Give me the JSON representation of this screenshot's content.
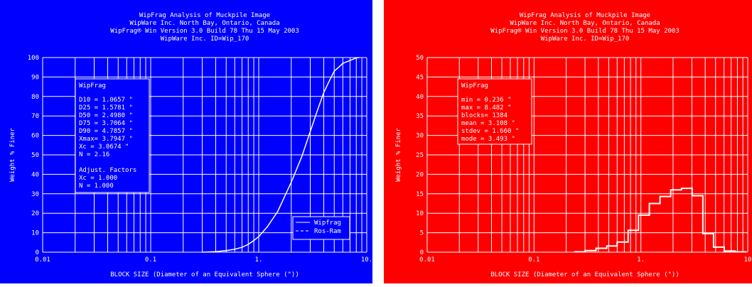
{
  "chart_data": [
    {
      "type": "line",
      "panel_color": "#0000ff",
      "title_lines": [
        "WipFrag Analysis of Muckpile Image",
        "WipWare Inc. North Bay, Ontario, Canada",
        "WipFrag® Win Version 3.0 Build 78 Thu 15 May 2003",
        "WipWare Inc.  ID=Wip_170"
      ],
      "xlabel": "BLOCK SIZE (Diameter of an Equivalent Sphere (\"))",
      "ylabel": "Weight % Finer",
      "xscale": "log",
      "xlim": [
        0.01,
        10
      ],
      "ylim": [
        0,
        100
      ],
      "xticks": [
        "0.01",
        "0.1",
        "1.",
        "10."
      ],
      "yticks": [
        "0",
        "10",
        "20",
        "30",
        "40",
        "50",
        "60",
        "70",
        "80",
        "90",
        "100"
      ],
      "grid": true,
      "stats_box": {
        "heading": "WipFrag",
        "lines": [
          "D10 = 1.0657 \"",
          "D25 = 1.5781 \"",
          "D50 = 2.4980 \"",
          "D75 = 3.7064 \"",
          "D90 = 4.7857 \"",
          "Xmax= 3.7947 \"",
          "Xc  = 3.0674 \"",
          "N   = 2.16"
        ],
        "adjust_heading": "Adjust. Factors",
        "adjust_lines": [
          "Xc  = 1.000",
          "N   = 1.000"
        ]
      },
      "legend": [
        "Wipfrag",
        "Ros-Ram"
      ],
      "legend_position": "bottom-right",
      "series": [
        {
          "name": "Wipfrag",
          "style": "solid",
          "x": [
            0.3,
            0.4,
            0.5,
            0.6,
            0.7,
            0.8,
            0.9,
            1.0,
            1.2,
            1.5,
            2.0,
            2.5,
            3.0,
            3.5,
            4.0,
            4.5,
            5.0,
            5.5,
            6.0,
            7.0,
            8.0,
            8.5
          ],
          "y": [
            0,
            0.3,
            0.8,
            1.5,
            2.5,
            4,
            6,
            8,
            13,
            21,
            36,
            49,
            62,
            73,
            82,
            88,
            93,
            95,
            97,
            98.5,
            99.8,
            100
          ]
        },
        {
          "name": "Ros-Ram",
          "style": "dashed",
          "x": [
            0.3,
            0.4,
            0.5,
            0.6,
            0.7,
            0.8,
            0.9,
            1.0,
            1.2,
            1.5,
            2.0,
            2.5,
            3.0,
            3.5,
            4.0,
            4.5,
            5.0,
            5.5,
            6.0,
            7.0,
            8.0,
            8.5
          ],
          "y": [
            0,
            0.3,
            0.8,
            1.5,
            2.5,
            4,
            6,
            8,
            13,
            21,
            36,
            49,
            62,
            73,
            82,
            88,
            93,
            95,
            97,
            98.5,
            99.8,
            100
          ]
        }
      ]
    },
    {
      "type": "bar",
      "panel_color": "#ff0000",
      "title_lines": [
        "WipFrag Analysis of Muckpile Image",
        "WipWare Inc. North Bay, Ontario, Canada",
        "WipFrag® Win Version 3.0 Build 78 Thu 15 May 2003",
        "WipWare Inc.  ID=Wip_170"
      ],
      "xlabel": "BLOCK SIZE (Diameter of an Equivalent Sphere (\"))",
      "ylabel": "Weight % Finer",
      "xscale": "log",
      "xlim": [
        0.01,
        10
      ],
      "ylim": [
        0,
        50
      ],
      "xticks": [
        "0.01",
        "0.1",
        "1.",
        "10"
      ],
      "yticks": [
        "0",
        "5",
        "10",
        "15",
        "20",
        "25",
        "30",
        "35",
        "40",
        "45",
        "50"
      ],
      "grid": true,
      "stats_box": {
        "heading": "WipFrag",
        "lines": [
          "min   = 0.236 \"",
          "max   = 8.482 \"",
          "blocks= 1384",
          "mean  = 3.108 \"",
          "stdev = 1.660 \"",
          "mode  = 3.493 \""
        ]
      },
      "bin_edges": [
        0.24,
        0.3,
        0.38,
        0.48,
        0.6,
        0.76,
        0.95,
        1.2,
        1.51,
        1.9,
        2.4,
        3.02,
        3.8,
        4.79,
        6.03,
        7.6,
        9.57
      ],
      "values": [
        0.1,
        0.4,
        1.0,
        1.6,
        2.6,
        5.6,
        9.5,
        12.5,
        14.3,
        16.0,
        16.4,
        14.5,
        4.8,
        1.3,
        0.3,
        0.1
      ]
    }
  ]
}
